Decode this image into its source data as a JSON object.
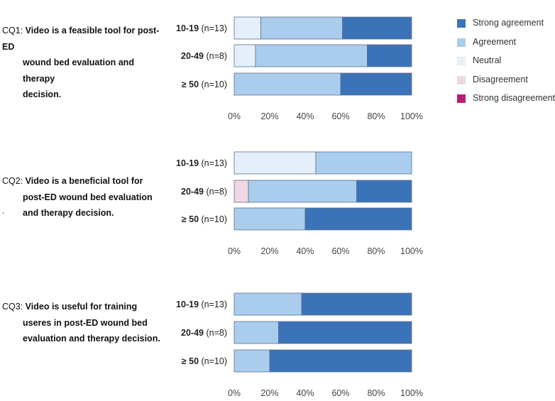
{
  "colors": {
    "strong_agreement": "#3b73b9",
    "agreement": "#aacdee",
    "neutral": "#e4eff9",
    "disagreement": "#f0d7e4",
    "strong_disagreement": "#b41f73"
  },
  "legend": [
    {
      "label": "Strong agreement",
      "color": "#3b73b9"
    },
    {
      "label": "Agreement",
      "color": "#aacdee"
    },
    {
      "label": "Neutral",
      "color": "#e4eff9"
    },
    {
      "label": "Disagreement",
      "color": "#f0d7e4"
    },
    {
      "label": "Strong disagreement",
      "color": "#b41f73"
    }
  ],
  "questions": [
    {
      "id": "CQ1:",
      "line1": "Video is a feasible tool for post-ED",
      "line2": "wound bed evaluation and therapy",
      "line3": "decision."
    },
    {
      "id": "CQ2:",
      "line1": "Video is a beneficial tool for",
      "line2": "post-ED wound bed evaluation",
      "line3": "and therapy decision."
    },
    {
      "id": "CQ3:",
      "line1": "Video is useful for training",
      "line2": "useres in post-ED wound bed",
      "line3": "evaluation and therapy decision."
    }
  ],
  "stray_mark": ".",
  "chart_data": [
    {
      "type": "bar",
      "orientation": "horizontal",
      "stacked": true,
      "title": "CQ1",
      "categories": [
        {
          "range": "10-19",
          "n": "(n=13)"
        },
        {
          "range": "20-49",
          "n": "(n=8)"
        },
        {
          "range": "≥ 50",
          "n": "(n=10)"
        }
      ],
      "series": [
        {
          "name": "Neutral",
          "values": [
            15,
            12,
            0
          ]
        },
        {
          "name": "Disagreement",
          "values": [
            0,
            0,
            0
          ]
        },
        {
          "name": "Agreement",
          "values": [
            46,
            63,
            60
          ]
        },
        {
          "name": "Strong agreement",
          "values": [
            39,
            25,
            40
          ]
        }
      ],
      "xlim": [
        0,
        100
      ],
      "xticks": [
        "0%",
        "20%",
        "40%",
        "60%",
        "80%",
        "100%"
      ]
    },
    {
      "type": "bar",
      "orientation": "horizontal",
      "stacked": true,
      "title": "CQ2",
      "categories": [
        {
          "range": "10-19",
          "n": "(n=13)"
        },
        {
          "range": "20-49",
          "n": "(n=8)"
        },
        {
          "range": "≥ 50",
          "n": "(n=10)"
        }
      ],
      "series": [
        {
          "name": "Neutral",
          "values": [
            46,
            0,
            0
          ]
        },
        {
          "name": "Disagreement",
          "values": [
            0,
            8,
            0
          ]
        },
        {
          "name": "Agreement",
          "values": [
            54,
            61,
            40
          ]
        },
        {
          "name": "Strong agreement",
          "values": [
            0,
            31,
            60
          ]
        }
      ],
      "xlim": [
        0,
        100
      ],
      "xticks": [
        "0%",
        "20%",
        "40%",
        "60%",
        "80%",
        "100%"
      ]
    },
    {
      "type": "bar",
      "orientation": "horizontal",
      "stacked": true,
      "title": "CQ3",
      "categories": [
        {
          "range": "10-19",
          "n": "(n=13)"
        },
        {
          "range": "20-49",
          "n": "(n=8)"
        },
        {
          "range": "≥ 50",
          "n": "(n=10)"
        }
      ],
      "series": [
        {
          "name": "Neutral",
          "values": [
            0,
            0,
            0
          ]
        },
        {
          "name": "Disagreement",
          "values": [
            0,
            0,
            0
          ]
        },
        {
          "name": "Agreement",
          "values": [
            38,
            25,
            20
          ]
        },
        {
          "name": "Strong agreement",
          "values": [
            62,
            75,
            80
          ]
        }
      ],
      "xlim": [
        0,
        100
      ],
      "xticks": [
        "0%",
        "20%",
        "40%",
        "60%",
        "80%",
        "100%"
      ]
    }
  ]
}
